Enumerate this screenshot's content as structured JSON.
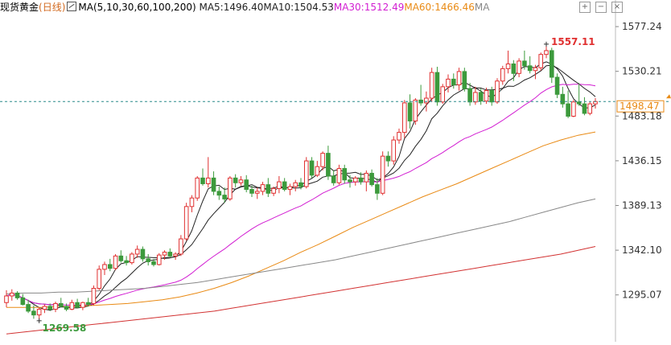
{
  "legend": {
    "instrument": "现货黄金",
    "period": "(日线)",
    "ma_label": "MA(5,10,30,60,100,200)",
    "ma_items": [
      {
        "label": "MA5:1496.40",
        "color": "#222222"
      },
      {
        "label": "MA10:1504.53",
        "color": "#222222"
      },
      {
        "label": "MA30:1512.49",
        "color": "#d21ed2"
      },
      {
        "label": "MA60:1466.46",
        "color": "#e98a14"
      },
      {
        "label": "MA",
        "color": "#888888"
      }
    ],
    "tool_icons": [
      "plus-icon",
      "minus-icon",
      "close-icon"
    ]
  },
  "colors": {
    "up": "#e03030",
    "down": "#3c9a3c",
    "ma5": "#222222",
    "ma10": "#222222",
    "ma30": "#d21ed2",
    "ma60": "#e98a14",
    "ma100": "#888888",
    "ma200": "#d23232",
    "grid": "#dddddd",
    "current_line": "#2a8a8a",
    "high_label": "#e03030",
    "low_label": "#3c9a3c",
    "price_tag": "#e98a14"
  },
  "chart_data": {
    "type": "candlestick",
    "y_ticks": [
      "1577.24",
      "1530.21",
      "1483.18",
      "1436.15",
      "1389.13",
      "1342.10",
      "1295.07"
    ],
    "ylim": [
      1250,
      1590
    ],
    "current_price": "1498.47",
    "high_label": "1557.11",
    "low_label": "1269.58",
    "candles": [
      {
        "o": 1287,
        "h": 1300,
        "l": 1282,
        "c": 1294
      },
      {
        "o": 1294,
        "h": 1301,
        "l": 1289,
        "c": 1297
      },
      {
        "o": 1297,
        "h": 1299,
        "l": 1290,
        "c": 1292
      },
      {
        "o": 1292,
        "h": 1296,
        "l": 1284,
        "c": 1285
      },
      {
        "o": 1285,
        "h": 1290,
        "l": 1276,
        "c": 1278
      },
      {
        "o": 1278,
        "h": 1284,
        "l": 1270,
        "c": 1274
      },
      {
        "o": 1274,
        "h": 1282,
        "l": 1269.58,
        "c": 1280
      },
      {
        "o": 1280,
        "h": 1285,
        "l": 1276,
        "c": 1283
      },
      {
        "o": 1283,
        "h": 1286,
        "l": 1278,
        "c": 1280
      },
      {
        "o": 1280,
        "h": 1288,
        "l": 1277,
        "c": 1286
      },
      {
        "o": 1286,
        "h": 1292,
        "l": 1282,
        "c": 1283
      },
      {
        "o": 1283,
        "h": 1286,
        "l": 1278,
        "c": 1280
      },
      {
        "o": 1280,
        "h": 1290,
        "l": 1279,
        "c": 1287
      },
      {
        "o": 1287,
        "h": 1291,
        "l": 1281,
        "c": 1282
      },
      {
        "o": 1282,
        "h": 1288,
        "l": 1279,
        "c": 1287
      },
      {
        "o": 1287,
        "h": 1292,
        "l": 1283,
        "c": 1285
      },
      {
        "o": 1286,
        "h": 1305,
        "l": 1284,
        "c": 1302
      },
      {
        "o": 1302,
        "h": 1326,
        "l": 1300,
        "c": 1322
      },
      {
        "o": 1322,
        "h": 1330,
        "l": 1316,
        "c": 1327
      },
      {
        "o": 1327,
        "h": 1333,
        "l": 1320,
        "c": 1323
      },
      {
        "o": 1323,
        "h": 1338,
        "l": 1321,
        "c": 1336
      },
      {
        "o": 1336,
        "h": 1342,
        "l": 1329,
        "c": 1331
      },
      {
        "o": 1331,
        "h": 1336,
        "l": 1326,
        "c": 1329
      },
      {
        "o": 1329,
        "h": 1340,
        "l": 1327,
        "c": 1338
      },
      {
        "o": 1338,
        "h": 1347,
        "l": 1334,
        "c": 1343
      },
      {
        "o": 1343,
        "h": 1346,
        "l": 1330,
        "c": 1333
      },
      {
        "o": 1333,
        "h": 1338,
        "l": 1326,
        "c": 1330
      },
      {
        "o": 1330,
        "h": 1333,
        "l": 1325,
        "c": 1327
      },
      {
        "o": 1327,
        "h": 1339,
        "l": 1326,
        "c": 1337
      },
      {
        "o": 1337,
        "h": 1342,
        "l": 1332,
        "c": 1340
      },
      {
        "o": 1340,
        "h": 1344,
        "l": 1334,
        "c": 1336
      },
      {
        "o": 1336,
        "h": 1340,
        "l": 1332,
        "c": 1338
      },
      {
        "o": 1338,
        "h": 1358,
        "l": 1336,
        "c": 1354
      },
      {
        "o": 1354,
        "h": 1392,
        "l": 1352,
        "c": 1388
      },
      {
        "o": 1388,
        "h": 1400,
        "l": 1382,
        "c": 1397
      },
      {
        "o": 1397,
        "h": 1420,
        "l": 1394,
        "c": 1418
      },
      {
        "o": 1418,
        "h": 1428,
        "l": 1410,
        "c": 1412
      },
      {
        "o": 1412,
        "h": 1440,
        "l": 1408,
        "c": 1418
      },
      {
        "o": 1418,
        "h": 1425,
        "l": 1400,
        "c": 1404
      },
      {
        "o": 1404,
        "h": 1409,
        "l": 1395,
        "c": 1400
      },
      {
        "o": 1400,
        "h": 1408,
        "l": 1392,
        "c": 1396
      },
      {
        "o": 1396,
        "h": 1420,
        "l": 1394,
        "c": 1418
      },
      {
        "o": 1418,
        "h": 1422,
        "l": 1408,
        "c": 1413
      },
      {
        "o": 1413,
        "h": 1420,
        "l": 1410,
        "c": 1416
      },
      {
        "o": 1416,
        "h": 1421,
        "l": 1403,
        "c": 1406
      },
      {
        "o": 1406,
        "h": 1410,
        "l": 1398,
        "c": 1402
      },
      {
        "o": 1402,
        "h": 1408,
        "l": 1396,
        "c": 1404
      },
      {
        "o": 1404,
        "h": 1414,
        "l": 1400,
        "c": 1411
      },
      {
        "o": 1411,
        "h": 1418,
        "l": 1398,
        "c": 1402
      },
      {
        "o": 1402,
        "h": 1409,
        "l": 1399,
        "c": 1407
      },
      {
        "o": 1407,
        "h": 1420,
        "l": 1402,
        "c": 1414
      },
      {
        "o": 1414,
        "h": 1418,
        "l": 1404,
        "c": 1406
      },
      {
        "o": 1406,
        "h": 1412,
        "l": 1400,
        "c": 1409
      },
      {
        "o": 1409,
        "h": 1416,
        "l": 1404,
        "c": 1413
      },
      {
        "o": 1413,
        "h": 1418,
        "l": 1406,
        "c": 1409
      },
      {
        "o": 1409,
        "h": 1440,
        "l": 1407,
        "c": 1436
      },
      {
        "o": 1436,
        "h": 1440,
        "l": 1418,
        "c": 1421
      },
      {
        "o": 1421,
        "h": 1436,
        "l": 1419,
        "c": 1430
      },
      {
        "o": 1430,
        "h": 1446,
        "l": 1426,
        "c": 1444
      },
      {
        "o": 1444,
        "h": 1452,
        "l": 1416,
        "c": 1420
      },
      {
        "o": 1420,
        "h": 1426,
        "l": 1410,
        "c": 1413
      },
      {
        "o": 1413,
        "h": 1432,
        "l": 1411,
        "c": 1428
      },
      {
        "o": 1428,
        "h": 1432,
        "l": 1412,
        "c": 1416
      },
      {
        "o": 1416,
        "h": 1421,
        "l": 1408,
        "c": 1414
      },
      {
        "o": 1414,
        "h": 1420,
        "l": 1410,
        "c": 1418
      },
      {
        "o": 1418,
        "h": 1424,
        "l": 1411,
        "c": 1414
      },
      {
        "o": 1414,
        "h": 1426,
        "l": 1404,
        "c": 1423
      },
      {
        "o": 1423,
        "h": 1427,
        "l": 1409,
        "c": 1411
      },
      {
        "o": 1411,
        "h": 1418,
        "l": 1395,
        "c": 1402
      },
      {
        "o": 1402,
        "h": 1446,
        "l": 1400,
        "c": 1441
      },
      {
        "o": 1441,
        "h": 1446,
        "l": 1430,
        "c": 1436
      },
      {
        "o": 1436,
        "h": 1462,
        "l": 1432,
        "c": 1458
      },
      {
        "o": 1458,
        "h": 1470,
        "l": 1454,
        "c": 1466
      },
      {
        "o": 1466,
        "h": 1500,
        "l": 1460,
        "c": 1497
      },
      {
        "o": 1497,
        "h": 1506,
        "l": 1470,
        "c": 1478
      },
      {
        "o": 1478,
        "h": 1502,
        "l": 1474,
        "c": 1500
      },
      {
        "o": 1500,
        "h": 1516,
        "l": 1494,
        "c": 1497
      },
      {
        "o": 1497,
        "h": 1509,
        "l": 1488,
        "c": 1502
      },
      {
        "o": 1502,
        "h": 1534,
        "l": 1498,
        "c": 1529
      },
      {
        "o": 1529,
        "h": 1535,
        "l": 1494,
        "c": 1498
      },
      {
        "o": 1498,
        "h": 1517,
        "l": 1496,
        "c": 1514
      },
      {
        "o": 1514,
        "h": 1527,
        "l": 1508,
        "c": 1522
      },
      {
        "o": 1522,
        "h": 1528,
        "l": 1512,
        "c": 1516
      },
      {
        "o": 1516,
        "h": 1534,
        "l": 1510,
        "c": 1530
      },
      {
        "o": 1530,
        "h": 1534,
        "l": 1509,
        "c": 1512
      },
      {
        "o": 1512,
        "h": 1518,
        "l": 1494,
        "c": 1498
      },
      {
        "o": 1498,
        "h": 1514,
        "l": 1495,
        "c": 1508
      },
      {
        "o": 1508,
        "h": 1512,
        "l": 1495,
        "c": 1499
      },
      {
        "o": 1499,
        "h": 1513,
        "l": 1496,
        "c": 1510
      },
      {
        "o": 1510,
        "h": 1514,
        "l": 1494,
        "c": 1498
      },
      {
        "o": 1498,
        "h": 1523,
        "l": 1496,
        "c": 1520
      },
      {
        "o": 1520,
        "h": 1536,
        "l": 1516,
        "c": 1533
      },
      {
        "o": 1533,
        "h": 1552,
        "l": 1528,
        "c": 1538
      },
      {
        "o": 1538,
        "h": 1542,
        "l": 1520,
        "c": 1528
      },
      {
        "o": 1528,
        "h": 1544,
        "l": 1524,
        "c": 1541
      },
      {
        "o": 1541,
        "h": 1552,
        "l": 1532,
        "c": 1536
      },
      {
        "o": 1536,
        "h": 1546,
        "l": 1528,
        "c": 1531
      },
      {
        "o": 1531,
        "h": 1537,
        "l": 1522,
        "c": 1534
      },
      {
        "o": 1534,
        "h": 1550,
        "l": 1531,
        "c": 1548
      },
      {
        "o": 1548,
        "h": 1557.11,
        "l": 1544,
        "c": 1552
      },
      {
        "o": 1552,
        "h": 1555,
        "l": 1518,
        "c": 1524
      },
      {
        "o": 1524,
        "h": 1528,
        "l": 1502,
        "c": 1506
      },
      {
        "o": 1506,
        "h": 1514,
        "l": 1492,
        "c": 1496
      },
      {
        "o": 1496,
        "h": 1510,
        "l": 1481,
        "c": 1483
      },
      {
        "o": 1483,
        "h": 1500,
        "l": 1482,
        "c": 1498
      },
      {
        "o": 1498,
        "h": 1518,
        "l": 1494,
        "c": 1496
      },
      {
        "o": 1496,
        "h": 1503,
        "l": 1484,
        "c": 1486
      },
      {
        "o": 1486,
        "h": 1498,
        "l": 1484,
        "c": 1496
      },
      {
        "o": 1496,
        "h": 1502,
        "l": 1491,
        "c": 1498.47
      }
    ],
    "moving_averages": [
      {
        "name": "MA5",
        "color_key": "ma5",
        "period": 5
      },
      {
        "name": "MA10",
        "color_key": "ma10",
        "period": 10
      },
      {
        "name": "MA30",
        "color_key": "ma30",
        "period": 30
      },
      {
        "name": "MA60",
        "color_key": "ma60",
        "values": [
          1282,
          1282,
          1282,
          1283,
          1283,
          1284,
          1285,
          1286,
          1288,
          1290,
          1293,
          1297,
          1302,
          1308,
          1315,
          1323,
          1331,
          1340,
          1348,
          1357,
          1366,
          1374,
          1382,
          1390,
          1398,
          1405,
          1412,
          1420,
          1428,
          1436,
          1444,
          1452,
          1458,
          1463,
          1466.46
        ]
      },
      {
        "name": "MA100",
        "color_key": "ma100",
        "values": [
          1296,
          1297,
          1297,
          1298,
          1298,
          1299,
          1300,
          1301,
          1302,
          1304,
          1306,
          1308,
          1311,
          1314,
          1317,
          1320,
          1323,
          1326,
          1329,
          1332,
          1336,
          1340,
          1344,
          1348,
          1352,
          1356,
          1360,
          1364,
          1368,
          1372,
          1377,
          1382,
          1387,
          1392,
          1396
        ]
      },
      {
        "name": "MA200",
        "color_key": "ma200",
        "values": [
          1254,
          1256,
          1258,
          1260,
          1262,
          1264,
          1266,
          1268,
          1270,
          1272,
          1274,
          1276,
          1278,
          1281,
          1284,
          1287,
          1290,
          1293,
          1296,
          1299,
          1302,
          1305,
          1308,
          1311,
          1314,
          1317,
          1320,
          1323,
          1326,
          1329,
          1332,
          1335,
          1338,
          1342,
          1346
        ]
      }
    ]
  }
}
